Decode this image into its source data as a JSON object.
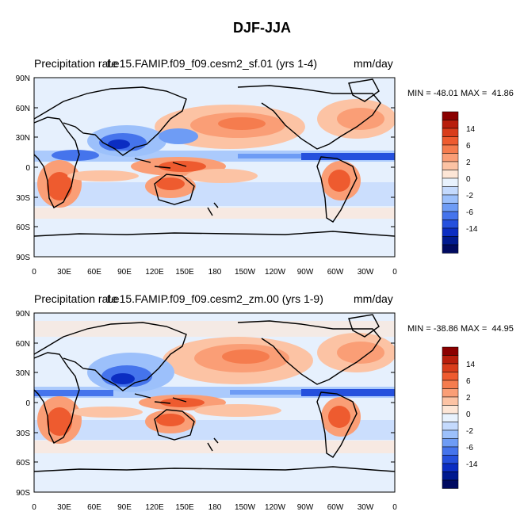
{
  "figure": {
    "title": "DJF-JJA"
  },
  "panels": [
    {
      "left_title": "Precipitation rate",
      "center_title": "f.e15.FAMIP.f09_f09.cesm2_sf.01 (yrs 1-4)",
      "right_title": "mm/day",
      "minmax": "MIN = -48.01 MAX =  41.86"
    },
    {
      "left_title": "Precipitation rate",
      "center_title": "f.e15.FAMIP.f09_f09.cesm2_zm.00 (yrs 1-9)",
      "right_title": "mm/day",
      "minmax": "MIN = -38.86 MAX =  44.95"
    }
  ],
  "axes": {
    "lat_labels": [
      "90N",
      "60N",
      "30N",
      "0",
      "30S",
      "60S",
      "90S"
    ],
    "lon_labels": [
      "0",
      "30E",
      "60E",
      "90E",
      "120E",
      "150E",
      "180",
      "150W",
      "120W",
      "90W",
      "60W",
      "30W",
      "0"
    ]
  },
  "colorbar": {
    "labels": [
      "14",
      "6",
      "2",
      "0",
      "-2",
      "-6",
      "-14"
    ],
    "colors": [
      "#8b0000",
      "#b81e0c",
      "#d93d1b",
      "#ee5b2f",
      "#f57c4e",
      "#fa9e76",
      "#fcc3a4",
      "#fde6d6",
      "#e8f2fd",
      "#c4dafd",
      "#9cc0fb",
      "#6e9cf5",
      "#4574ec",
      "#2550dd",
      "#0b2dc2",
      "#001a8f",
      "#000a60"
    ]
  },
  "colors": {
    "background_field": "#e6f0fd",
    "coast": "#000000"
  }
}
